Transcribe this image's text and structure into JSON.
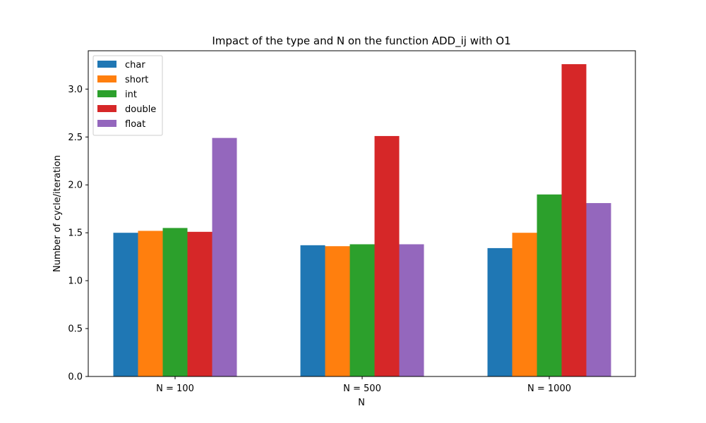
{
  "chart_data": {
    "type": "bar",
    "title": "Impact of the type and N on the function ADD_ij with O1",
    "xlabel": "N",
    "ylabel": "Number of cycle/iteration",
    "categories": [
      "N = 100",
      "N = 500",
      "N = 1000"
    ],
    "ylim": [
      0,
      3.4
    ],
    "yticks": [
      0.0,
      0.5,
      1.0,
      1.5,
      2.0,
      2.5,
      3.0
    ],
    "ytick_labels": [
      "0.0",
      "0.5",
      "1.0",
      "1.5",
      "2.0",
      "2.5",
      "3.0"
    ],
    "grid": false,
    "legend_position": "top-left",
    "series": [
      {
        "name": "char",
        "color": "#1f77b4",
        "values": [
          1.5,
          1.37,
          1.34
        ]
      },
      {
        "name": "short",
        "color": "#ff7f0e",
        "values": [
          1.52,
          1.36,
          1.5
        ]
      },
      {
        "name": "int",
        "color": "#2ca02c",
        "values": [
          1.55,
          1.38,
          1.9
        ]
      },
      {
        "name": "double",
        "color": "#d62728",
        "values": [
          1.51,
          2.51,
          3.26
        ]
      },
      {
        "name": "float",
        "color": "#9467bd",
        "values": [
          2.49,
          1.38,
          1.81
        ]
      }
    ]
  }
}
